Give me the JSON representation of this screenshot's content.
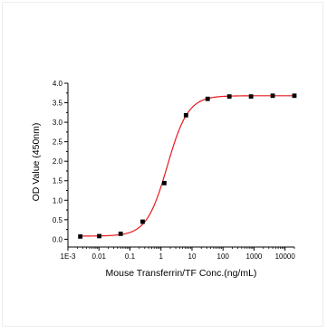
{
  "chart_data": {
    "type": "scatter",
    "title": "",
    "xlabel": "Mouse Transferrin/TF Conc.(ng/mL)",
    "ylabel": "OD Value (450nm)",
    "x_scale": "log",
    "xlim": [
      0.001,
      20000
    ],
    "ylim": [
      -0.2,
      4.0
    ],
    "x_ticks": [
      0.001,
      0.01,
      0.1,
      1,
      10,
      100,
      1000,
      10000
    ],
    "x_tick_labels": [
      "1E-3",
      "0.01",
      "0.1",
      "1",
      "10",
      "100",
      "1000",
      "10000"
    ],
    "y_ticks": [
      0,
      0.5,
      1,
      1.5,
      2,
      2.5,
      3,
      3.5,
      4
    ],
    "y_tick_labels": [
      "0.0",
      "0.5",
      "1.0",
      "1.5",
      "2.0",
      "2.5",
      "3.0",
      "3.5",
      "4.0"
    ],
    "grid": false,
    "legend": "none",
    "series": [
      {
        "x": [
          0.0025,
          0.0102,
          0.05,
          0.256,
          1.28,
          6.4,
          32.0,
          160,
          800,
          4000,
          20000
        ],
        "y": [
          0.07,
          0.08,
          0.14,
          0.45,
          1.44,
          3.18,
          3.6,
          3.66,
          3.66,
          3.68,
          3.68
        ],
        "marker_color": "#000000",
        "fit_curve": {
          "model": "4PL",
          "bottom": 0.08,
          "top": 3.68,
          "ec50": 1.6,
          "hill": 1.3,
          "color": "#e8191c"
        }
      }
    ]
  }
}
